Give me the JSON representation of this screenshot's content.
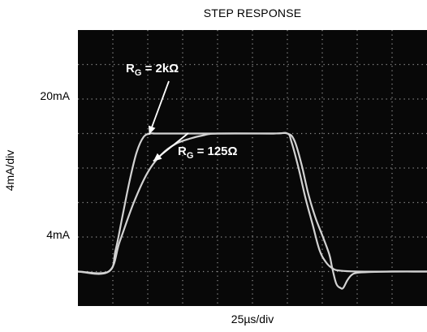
{
  "chart_data": {
    "type": "line",
    "title": "STEP RESPONSE",
    "xlabel": "25µs/div",
    "ylabel": "4mA/div",
    "level_labels": [
      "20mA",
      "4mA"
    ],
    "level_values_mA": [
      20,
      4
    ],
    "x_unit": "µs",
    "y_unit": "mA",
    "xlim": [
      0,
      250
    ],
    "ylim": [
      0,
      32
    ],
    "grid": true,
    "series": [
      {
        "name": "R_G = 2kΩ",
        "label_parts": {
          "prefix": "R",
          "subscript": "G",
          "suffix": " = 2kΩ"
        },
        "x": [
          0,
          22,
          27,
          32,
          37,
          42,
          47,
          52,
          55,
          65,
          100,
          140,
          150,
          153,
          158,
          163,
          168,
          173,
          178,
          183,
          188,
          200,
          225,
          250
        ],
        "y": [
          4,
          4,
          6.5,
          10.5,
          14.5,
          17.8,
          19.6,
          20,
          20,
          20,
          20,
          20,
          20,
          19,
          16,
          12.5,
          9.5,
          6.5,
          5,
          4.3,
          4.1,
          4,
          4,
          4
        ]
      },
      {
        "name": "R_G = 125Ω",
        "label_parts": {
          "prefix": "R",
          "subscript": "G",
          "suffix": " = 125Ω"
        },
        "x": [
          0,
          22,
          30,
          40,
          50,
          60,
          70,
          80,
          90,
          100,
          140,
          150,
          155,
          160,
          165,
          170,
          175,
          180,
          182,
          185,
          188,
          190,
          193,
          196,
          200,
          210,
          225,
          250
        ],
        "y": [
          4,
          4,
          7.5,
          12,
          15.5,
          17.6,
          18.8,
          19.4,
          19.8,
          20,
          20,
          20,
          19.2,
          16.5,
          13,
          10.3,
          8.2,
          6,
          4.5,
          2.6,
          2.1,
          2.1,
          3,
          3.6,
          3.85,
          3.95,
          4,
          4
        ]
      }
    ],
    "annotations": [
      {
        "text_ref": 0,
        "position": "upper-left of curves",
        "arrow_to": {
          "x": 51,
          "y": 19.9
        }
      },
      {
        "text_ref": 1,
        "position": "middle",
        "arrow_to": {
          "x": 54,
          "y": 16.8
        }
      }
    ],
    "colors": {
      "screen": "#080808",
      "grid": "#8a8a8a",
      "trace": "#d2d2d2",
      "annotation": "#ffffff"
    }
  }
}
